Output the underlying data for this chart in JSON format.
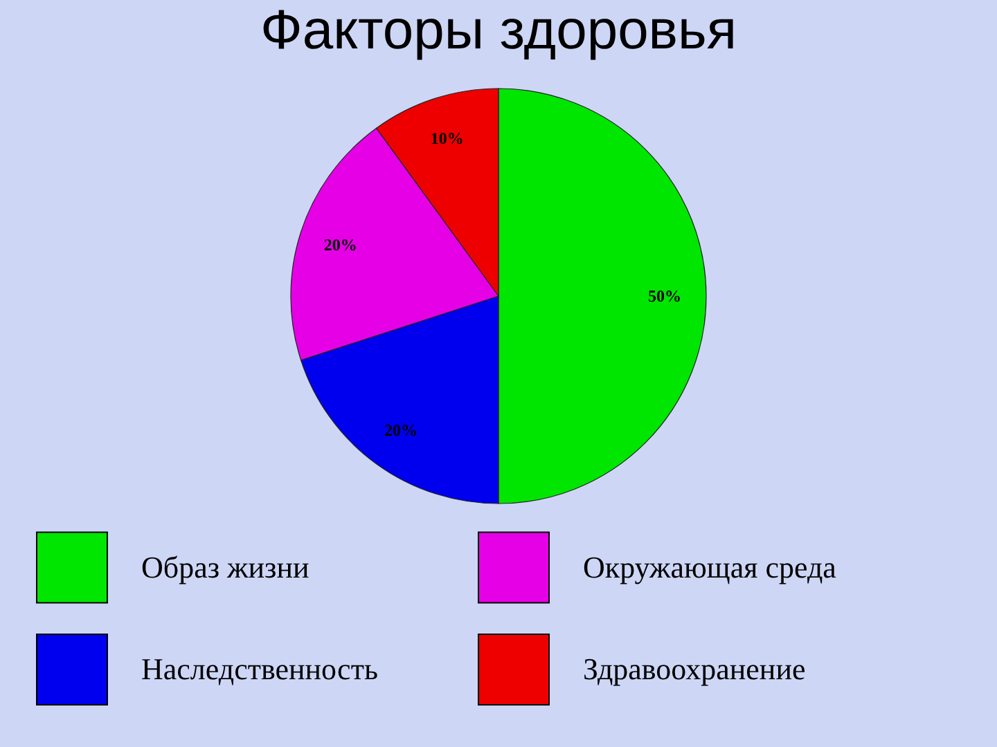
{
  "chart_data": {
    "type": "pie",
    "title": "Факторы здоровья",
    "categories": [
      "Образ жизни",
      "Наследственность",
      "Окружающая среда",
      "Здравоохранение"
    ],
    "values": [
      50,
      20,
      20,
      10
    ],
    "colors": [
      "#00e600",
      "#0000ee",
      "#e600e6",
      "#ee0000"
    ],
    "value_labels": [
      "50%",
      "20%",
      "20%",
      "10%"
    ],
    "legend": "bottom"
  }
}
